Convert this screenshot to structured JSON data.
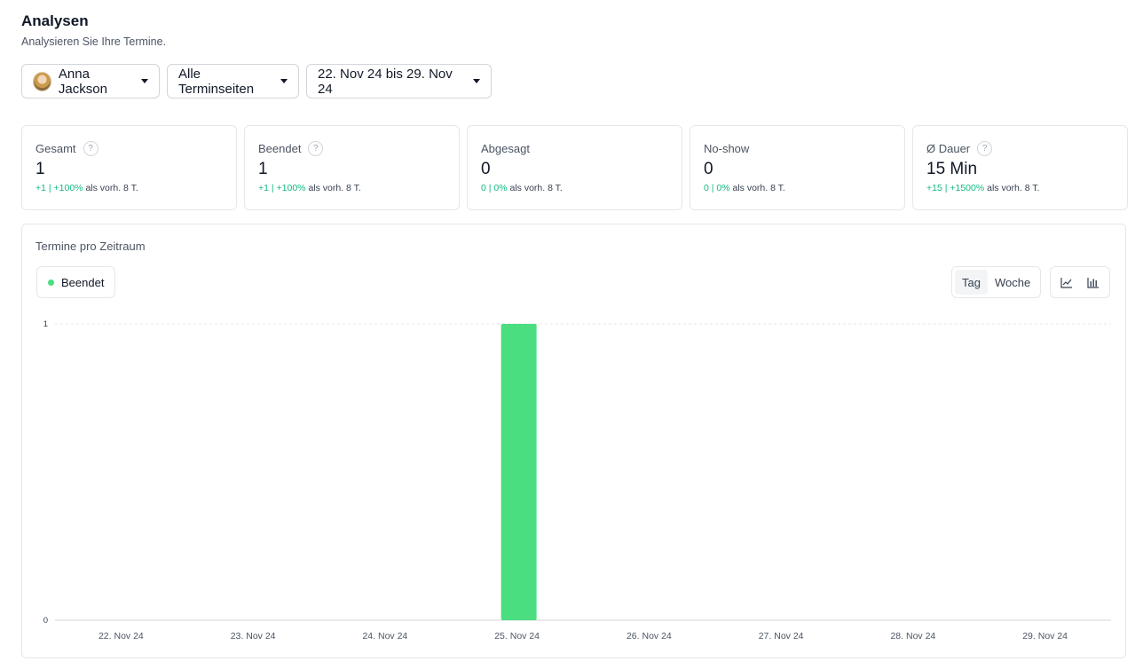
{
  "header": {
    "title": "Analysen",
    "subtitle": "Analysieren Sie Ihre Termine."
  },
  "filters": {
    "user": "Anna Jackson",
    "event_types": "Alle Terminseiten",
    "date_range": "22. Nov 24 bis 29. Nov 24"
  },
  "stats": [
    {
      "label": "Gesamt",
      "value": "1",
      "delta": "+1 | +100%",
      "suffix": "als vorh. 8 T.",
      "help": true
    },
    {
      "label": "Beendet",
      "value": "1",
      "delta": "+1 | +100%",
      "suffix": "als vorh. 8 T.",
      "help": true
    },
    {
      "label": "Abgesagt",
      "value": "0",
      "delta": "0 | 0%",
      "suffix": "als vorh. 8 T.",
      "help": false
    },
    {
      "label": "No-show",
      "value": "0",
      "delta": "0 | 0%",
      "suffix": "als vorh. 8 T.",
      "help": false
    },
    {
      "label": "Ø Dauer",
      "value": "15 Min",
      "delta": "+15 | +1500%",
      "suffix": "als vorh. 8 T.",
      "help": true
    }
  ],
  "chart_section": {
    "title": "Termine pro Zeitraum",
    "legend_label": "Beendet",
    "view_toggle": {
      "day": "Tag",
      "week": "Woche",
      "selected": "Tag"
    },
    "chart_type_icons": [
      "line-chart-icon",
      "bar-chart-icon"
    ]
  },
  "colors": {
    "accent_green": "#4ade80",
    "positive_text": "#10b981"
  },
  "chart_data": {
    "type": "bar",
    "categories": [
      "22. Nov 24",
      "23. Nov 24",
      "24. Nov 24",
      "25. Nov 24",
      "26. Nov 24",
      "27. Nov 24",
      "28. Nov 24",
      "29. Nov 24"
    ],
    "series": [
      {
        "name": "Beendet",
        "color": "#4ade80",
        "values": [
          0,
          0,
          0,
          1,
          0,
          0,
          0,
          0
        ]
      }
    ],
    "ylim": [
      0,
      1
    ],
    "yticks": [
      "0",
      "1"
    ],
    "grid": true,
    "legend": "top-left"
  }
}
